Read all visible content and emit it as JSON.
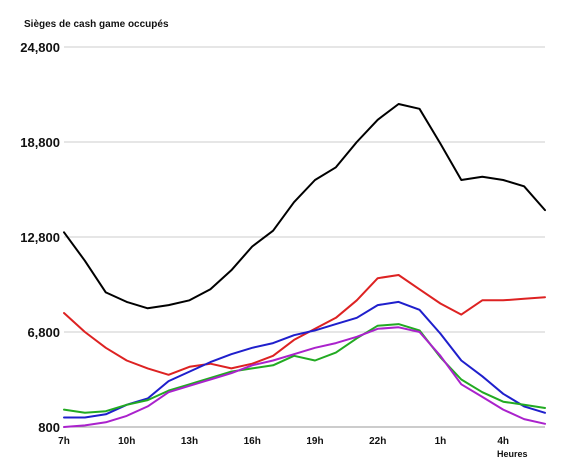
{
  "chart_data": {
    "type": "line",
    "ylabel": "Sièges de cash game occupés",
    "xlabel": "Heures",
    "ylim": [
      800,
      24800
    ],
    "yticks": [
      "800",
      "6,800",
      "12,800",
      "18,800",
      "24,800"
    ],
    "ytick_values": [
      800,
      6800,
      12800,
      18800,
      24800
    ],
    "grid": true,
    "xmax": 30,
    "x": [
      7,
      8,
      9,
      10,
      11,
      12,
      13,
      14,
      15,
      16,
      17,
      18,
      19,
      20,
      21,
      22,
      23,
      24,
      25,
      26,
      27,
      28,
      29,
      30
    ],
    "xticks": [
      "7h",
      "10h",
      "13h",
      "16h",
      "19h",
      "22h",
      "1h",
      "4h"
    ],
    "xtick_values": [
      7,
      10,
      13,
      16,
      19,
      22,
      25,
      28
    ],
    "series": [
      {
        "color": "#000000",
        "values": [
          13100,
          11300,
          9300,
          8700,
          8300,
          8500,
          8800,
          9500,
          10700,
          12200,
          13200,
          15000,
          16400,
          17200,
          18800,
          20200,
          21200,
          20900,
          18700,
          16400,
          16600,
          16400,
          16000,
          14500
        ]
      },
      {
        "color": "#dd2222",
        "values": [
          8000,
          6800,
          5800,
          5000,
          4500,
          4100,
          4600,
          4800,
          4500,
          4800,
          5300,
          6300,
          7000,
          7700,
          8800,
          10200,
          10400,
          9500,
          8600,
          7900,
          8800,
          8800,
          8900,
          9000
        ]
      },
      {
        "color": "#1f1fcc",
        "values": [
          1400,
          1400,
          1600,
          2200,
          2600,
          3700,
          4300,
          4900,
          5400,
          5800,
          6100,
          6600,
          6900,
          7300,
          7700,
          8500,
          8700,
          8200,
          6700,
          5000,
          4000,
          2900,
          2100,
          1700
        ]
      },
      {
        "color": "#22aa22",
        "values": [
          1900,
          1700,
          1800,
          2200,
          2500,
          3100,
          3500,
          3900,
          4300,
          4500,
          4700,
          5300,
          5000,
          5500,
          6400,
          7200,
          7300,
          6900,
          5200,
          3800,
          3000,
          2400,
          2200,
          2000
        ]
      },
      {
        "color": "#aa22cc",
        "values": [
          800,
          900,
          1100,
          1500,
          2100,
          3000,
          3400,
          3800,
          4200,
          4700,
          5000,
          5400,
          5800,
          6100,
          6500,
          7000,
          7100,
          6800,
          5300,
          3500,
          2700,
          1900,
          1300,
          1000
        ]
      }
    ]
  }
}
